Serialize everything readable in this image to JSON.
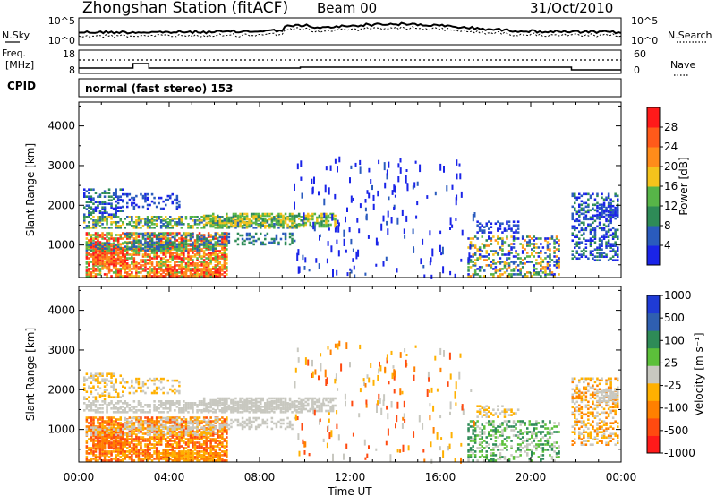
{
  "header": {
    "title": "Zhongshan Station (fitACF)",
    "beam": "Beam 00",
    "date": "31/Oct/2010"
  },
  "noise_panel": {
    "left_label": "N.Sky",
    "right_label": "N.Search",
    "left_ticks": [
      "10^5",
      "10^0"
    ],
    "right_ticks": [
      "10^5",
      "10^0"
    ]
  },
  "freq_panel": {
    "left_label_1": "Freq.",
    "left_label_2": "[MHz]",
    "right_label": "Nave",
    "left_ticks": [
      "18",
      "8"
    ],
    "right_ticks": [
      "60",
      "0"
    ]
  },
  "cpid": {
    "label": "CPID",
    "text": "normal (fast stereo) 153"
  },
  "x_axis": {
    "label": "Time UT",
    "ticks": [
      "00:00",
      "04:00",
      "08:00",
      "12:00",
      "16:00",
      "20:00",
      "00:00"
    ]
  },
  "power_colorbar": {
    "label": "Power [dB]",
    "ticks": [
      "4",
      "8",
      "12",
      "16",
      "20",
      "24",
      "28"
    ],
    "colors": [
      "#1a24e8",
      "#2a5bbd",
      "#2e8b57",
      "#57b548",
      "#f4c31c",
      "#ff8c1a",
      "#ff5a1a",
      "#ff1a1a"
    ]
  },
  "velocity_colorbar": {
    "label": "Velocity [m s⁻¹]",
    "ticks": [
      "1000",
      "500",
      "100",
      "25",
      "-25",
      "-100",
      "-500",
      "-1000"
    ],
    "colors": [
      "#1f3bd6",
      "#2f5fb0",
      "#2e8b57",
      "#5cc03a",
      "#c8c8c0",
      "#ffb000",
      "#ff8000",
      "#ff4a10",
      "#ff1a1a"
    ]
  },
  "chart_data": [
    {
      "type": "heatmap",
      "name": "power",
      "ylabel": "Slant Range [km]",
      "xlabel": "",
      "ylim": [
        180,
        4600
      ],
      "xlim_hours": [
        0,
        24
      ],
      "y_ticks": [
        1000,
        2000,
        3000,
        4000
      ],
      "color_scale": "Power [dB]",
      "regions": [
        {
          "t": [
            0.0,
            9.6
          ],
          "r": [
            1400,
            1750
          ],
          "value": "12-16 dB"
        },
        {
          "t": [
            0.3,
            6.6
          ],
          "r": [
            200,
            1300
          ],
          "value": "20-28 dB"
        },
        {
          "t": [
            5.2,
            11.2
          ],
          "r": [
            1450,
            1800
          ],
          "value": "12-16 dB"
        },
        {
          "t": [
            17.3,
            21.5
          ],
          "r": [
            200,
            1400
          ],
          "value": "4-16 dB"
        },
        {
          "t": [
            21.8,
            23.9
          ],
          "r": [
            600,
            2300
          ],
          "value": "4-12 dB"
        }
      ]
    },
    {
      "type": "heatmap",
      "name": "velocity",
      "ylabel": "Slant Range [km]",
      "xlabel": "Time UT",
      "ylim": [
        180,
        4600
      ],
      "xlim_hours": [
        0,
        24
      ],
      "y_ticks": [
        1000,
        2000,
        3000,
        4000
      ],
      "color_scale": "Velocity [m s-1]",
      "regions": [
        {
          "t": [
            0.0,
            11.5
          ],
          "r": [
            1400,
            1750
          ],
          "value": "-25 to 25 m/s"
        },
        {
          "t": [
            0.3,
            6.6
          ],
          "r": [
            200,
            1300
          ],
          "value": "-500 to -100 m/s"
        },
        {
          "t": [
            17.3,
            21.5
          ],
          "r": [
            200,
            1400
          ],
          "value": "25 to 500 m/s"
        },
        {
          "t": [
            21.8,
            23.9
          ],
          "r": [
            600,
            2300
          ],
          "value": "-500 to 25 m/s"
        }
      ]
    }
  ]
}
